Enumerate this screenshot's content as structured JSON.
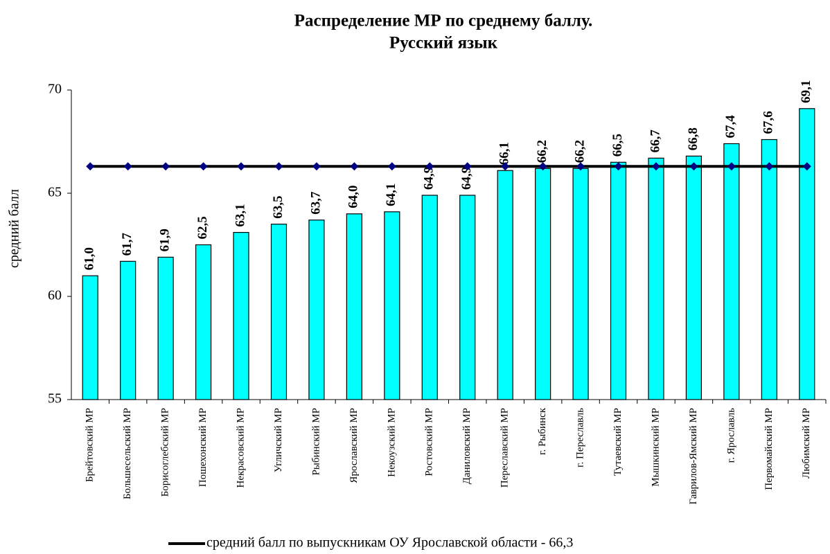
{
  "chart_data": {
    "type": "bar",
    "title": "Распределение МР по среднему баллу.",
    "subtitle": "Русский язык",
    "y_label": "средний балл",
    "categories": [
      "Брейтовский МР",
      "Большесельский МР",
      "Борисоглебский МР",
      "Пошехонский МР",
      "Некрасовский МР",
      "Угличский МР",
      "Рыбинский МР",
      "Ярославский МР",
      "Некоузский МР",
      "Ростовский МР",
      "Даниловский  МР",
      "Переславский МР",
      "г. Рыбинск",
      "г. Переславль",
      "Тутаевский  МР",
      "Мышкинский  МР",
      "Гаврилов-Ямский МР",
      "г. Ярославль",
      "Первомайский МР",
      "Любимский МР"
    ],
    "values": [
      61.0,
      61.7,
      61.9,
      62.5,
      63.1,
      63.5,
      63.7,
      64.0,
      64.1,
      64.9,
      64.9,
      66.1,
      66.2,
      66.2,
      66.5,
      66.7,
      66.8,
      67.4,
      67.6,
      69.1
    ],
    "value_labels": [
      "61,0",
      "61,7",
      "61,9",
      "62,5",
      "63,1",
      "63,5",
      "63,7",
      "64,0",
      "64,1",
      "64,9",
      "64,9",
      "66,1",
      "66,2",
      "66,2",
      "66,5",
      "66,7",
      "66,8",
      "67,4",
      "67,6",
      "69,1"
    ],
    "color": "#00ffff",
    "line_series": {
      "name": "средний балл по выпускникам  ОУ Ярославской области - 66,3",
      "color": "#000000",
      "marker_color": "#000080",
      "values": [
        66.3,
        66.3,
        66.3,
        66.3,
        66.3,
        66.3,
        66.3,
        66.3,
        66.3,
        66.3,
        66.3,
        66.3,
        66.3,
        66.3,
        66.3,
        66.3,
        66.3,
        66.3,
        66.3,
        66.3
      ]
    },
    "ylim": [
      55,
      70
    ],
    "yticks": [
      55,
      60,
      65,
      70
    ],
    "legend": "bottom"
  }
}
